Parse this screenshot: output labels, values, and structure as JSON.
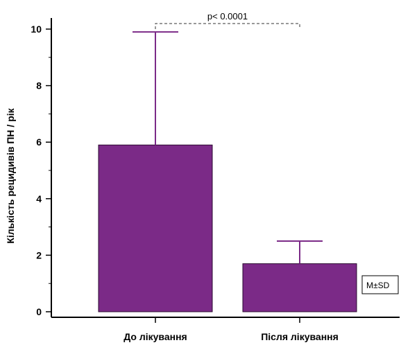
{
  "chart_data": {
    "type": "bar",
    "categories": [
      "До лікування",
      "Після лікування"
    ],
    "values": [
      5.9,
      1.7
    ],
    "error_sd": [
      4.0,
      0.8
    ],
    "error_type": "SD",
    "title": "",
    "xlabel": "",
    "ylabel": "Кількість рецидивів ПН / рік",
    "ylim": [
      0,
      10.5
    ],
    "yticks": [
      0,
      2,
      4,
      6,
      8,
      10
    ],
    "ytick_labels": [
      "0",
      "2",
      "4",
      "6",
      "8",
      "10"
    ],
    "grid": false,
    "bar_color": "#7b2a87",
    "annotation": "p< 0.0001",
    "legend": "M±SD",
    "legend_position": "bottom-right"
  }
}
